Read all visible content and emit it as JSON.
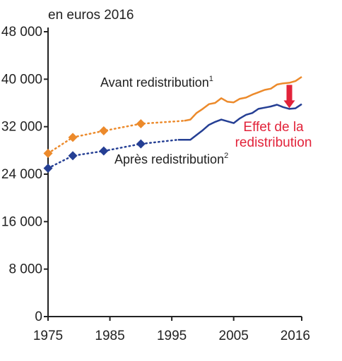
{
  "chart_data": {
    "type": "line",
    "title": "",
    "unit_label": "en euros 2016",
    "xlabel": "",
    "ylabel": "",
    "xlim": [
      1975,
      2016
    ],
    "ylim": [
      0,
      48000
    ],
    "grid": false,
    "x_ticks": [
      1975,
      1985,
      1995,
      2005,
      2016
    ],
    "y_ticks": [
      0,
      8000,
      16000,
      24000,
      32000,
      40000,
      48000
    ],
    "y_tick_labels": [
      "0",
      "8 000",
      "16 000",
      "24 000",
      "32 000",
      "40 000",
      "48 000"
    ],
    "colors": {
      "before": "#ec8a2b",
      "after": "#253f94",
      "effect": "#e2233a",
      "axis": "#222222"
    },
    "series": [
      {
        "key": "before",
        "name": "Avant redistribution",
        "footnote": "1",
        "markers": [
          [
            1975,
            27500
          ],
          [
            1979,
            30200
          ],
          [
            1984,
            31300
          ],
          [
            1990,
            32500
          ]
        ],
        "dotted_to": [
          1997,
          33000
        ],
        "line": [
          [
            1997,
            33000
          ],
          [
            1998,
            33200
          ],
          [
            1999,
            34300
          ],
          [
            2000,
            35000
          ],
          [
            2001,
            35800
          ],
          [
            2002,
            36000
          ],
          [
            2003,
            36800
          ],
          [
            2004,
            36200
          ],
          [
            2005,
            36100
          ],
          [
            2006,
            36700
          ],
          [
            2007,
            36900
          ],
          [
            2008,
            37400
          ],
          [
            2009,
            37800
          ],
          [
            2010,
            38200
          ],
          [
            2011,
            38400
          ],
          [
            2012,
            39100
          ],
          [
            2013,
            39300
          ],
          [
            2014,
            39400
          ],
          [
            2015,
            39700
          ],
          [
            2016,
            40400
          ]
        ]
      },
      {
        "key": "after",
        "name": "Après redistribution",
        "footnote": "2",
        "markers": [
          [
            1975,
            25000
          ],
          [
            1979,
            27100
          ],
          [
            1984,
            27900
          ],
          [
            1990,
            29100
          ]
        ],
        "dotted_to": [
          1996,
          29800
        ],
        "line": [
          [
            1996,
            29800
          ],
          [
            1998,
            29800
          ],
          [
            1999,
            30600
          ],
          [
            2000,
            31400
          ],
          [
            2001,
            32300
          ],
          [
            2002,
            32800
          ],
          [
            2003,
            33200
          ],
          [
            2004,
            32900
          ],
          [
            2005,
            32600
          ],
          [
            2006,
            33400
          ],
          [
            2007,
            34000
          ],
          [
            2008,
            34300
          ],
          [
            2009,
            35000
          ],
          [
            2010,
            35200
          ],
          [
            2011,
            35400
          ],
          [
            2012,
            35700
          ],
          [
            2013,
            35300
          ],
          [
            2014,
            35000
          ],
          [
            2015,
            35100
          ],
          [
            2016,
            35800
          ]
        ]
      }
    ],
    "annotation": {
      "lines": [
        "Effet de la",
        "redistribution"
      ],
      "arrow_year": 2014
    }
  }
}
